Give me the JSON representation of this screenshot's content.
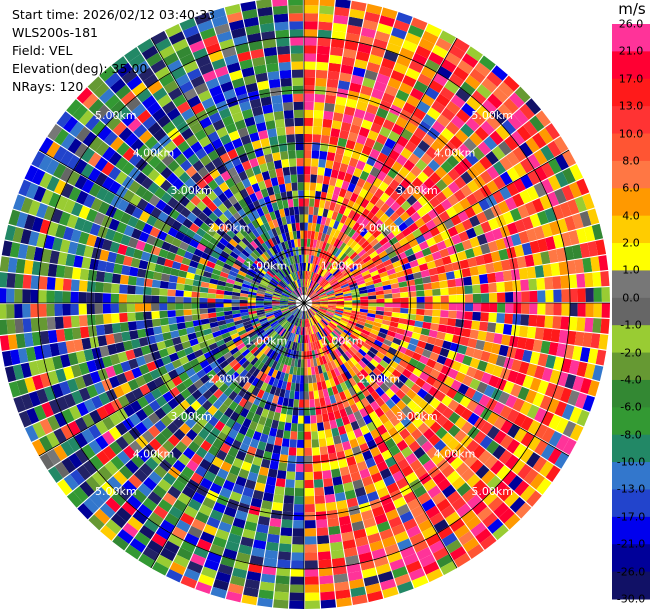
{
  "info": {
    "start_time": "Start time: 2026/02/12 03:40:33",
    "instrument": "WLS200s-181",
    "field": "Field: VEL",
    "elevation": "Elevation(deg): 35.00",
    "nrays": "NRays: 120"
  },
  "range_labels": [
    "1.00km",
    "2.00km",
    "3.00km",
    "4.00km",
    "5.00km"
  ],
  "colorbar": {
    "unit": "m/s",
    "ticks": [
      "26.0",
      "21.0",
      "17.0",
      "13.0",
      "10.0",
      "8.0",
      "6.0",
      "4.0",
      "2.0",
      "1.0",
      "0.0",
      "-1.0",
      "-2.0",
      "-4.0",
      "-6.0",
      "-8.0",
      "-10.0",
      "-13.0",
      "-17.0",
      "-21.0",
      "-26.0",
      "-30.0"
    ],
    "colors": [
      "#ff3399",
      "#ff0033",
      "#ff1a1a",
      "#ff3333",
      "#ff5533",
      "#ff7744",
      "#ff9900",
      "#ffcc00",
      "#ffff00",
      "#777777",
      "#666666",
      "#99cc33",
      "#669933",
      "#338833",
      "#339933",
      "#228866",
      "#3377cc",
      "#2244cc",
      "#0000ee",
      "#000099",
      "#111166",
      "#222266"
    ]
  },
  "chart_data": {
    "type": "heatmap",
    "title": "",
    "field": "VEL",
    "units": "m/s",
    "elevation_deg": 35.0,
    "n_rays": 120,
    "range_rings_km": [
      1.0,
      2.0,
      3.0,
      4.0,
      5.0
    ],
    "max_range_km": 5.75,
    "vlim": [
      -30.0,
      26.0
    ],
    "pattern": "radial velocity: positive (warm colors) toward east/north-east, negative (cool colors) toward west/south-west, noisy speckle beyond 1 km"
  }
}
